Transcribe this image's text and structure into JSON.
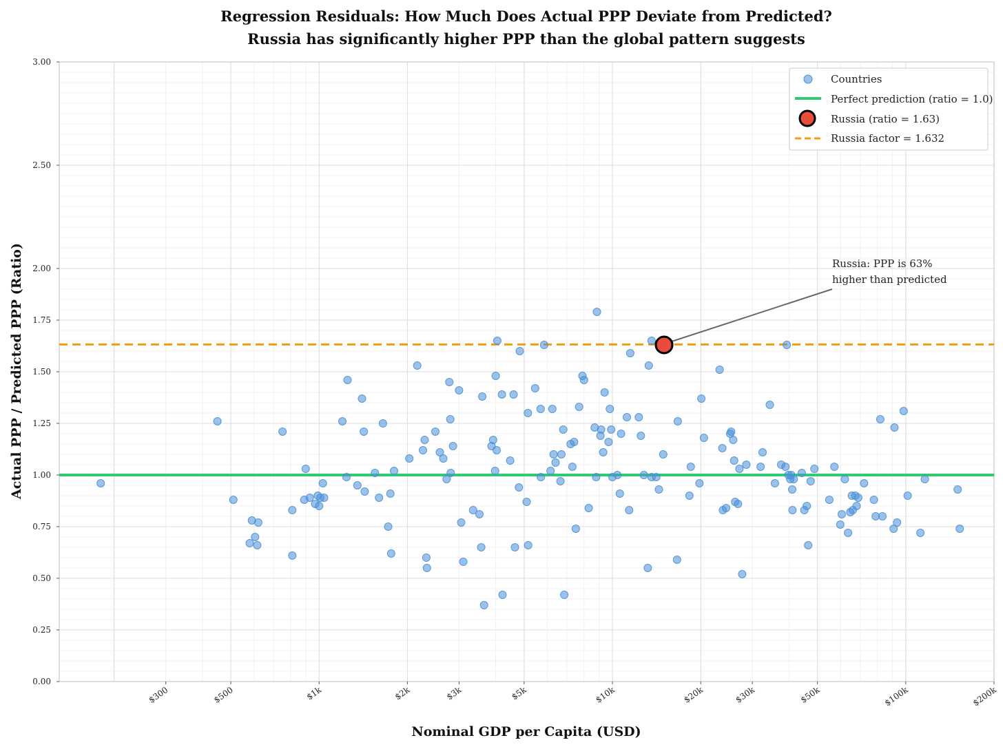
{
  "chart_data": {
    "type": "scatter",
    "title": "Regression Residuals: How Much Does Actual PPP Deviate from Predicted?",
    "subtitle": "Russia has significantly higher PPP than the global pattern suggests",
    "xlabel": "Nominal GDP per Capita (USD)",
    "ylabel": "Actual PPP / Predicted PPP (Ratio)",
    "x_scale": "log",
    "xlim": [
      130,
      200000
    ],
    "ylim": [
      0,
      3
    ],
    "x_ticks": [
      {
        "value": 300,
        "label": "$300"
      },
      {
        "value": 500,
        "label": "$500"
      },
      {
        "value": 1000,
        "label": "$1k"
      },
      {
        "value": 2000,
        "label": "$2k"
      },
      {
        "value": 3000,
        "label": "$3k"
      },
      {
        "value": 5000,
        "label": "$5k"
      },
      {
        "value": 10000,
        "label": "$10k"
      },
      {
        "value": 20000,
        "label": "$20k"
      },
      {
        "value": 30000,
        "label": "$30k"
      },
      {
        "value": 50000,
        "label": "$50k"
      },
      {
        "value": 100000,
        "label": "$100k"
      },
      {
        "value": 200000,
        "label": "$200k"
      }
    ],
    "y_ticks": [
      {
        "value": 0.0,
        "label": "0.00"
      },
      {
        "value": 0.25,
        "label": "0.25"
      },
      {
        "value": 0.5,
        "label": "0.50"
      },
      {
        "value": 0.75,
        "label": "0.75"
      },
      {
        "value": 1.0,
        "label": "1.00"
      },
      {
        "value": 1.25,
        "label": "1.25"
      },
      {
        "value": 1.5,
        "label": "1.50"
      },
      {
        "value": 1.75,
        "label": "1.75"
      },
      {
        "value": 2.0,
        "label": "2.00"
      },
      {
        "value": 2.5,
        "label": "2.50"
      },
      {
        "value": 3.0,
        "label": "3.00"
      }
    ],
    "grid": true,
    "legend": {
      "position": "top-right",
      "entries": [
        {
          "key": "countries",
          "label": "Countries"
        },
        {
          "key": "perfect",
          "label": "Perfect prediction (ratio = 1.0)"
        },
        {
          "key": "russia",
          "label": "Russia (ratio = 1.63)"
        },
        {
          "key": "factor",
          "label": "Russia factor = 1.632"
        }
      ]
    },
    "reference_lines": [
      {
        "name": "Perfect prediction",
        "y": 1.0,
        "color": "#2ecc71",
        "style": "solid"
      },
      {
        "name": "Russia factor",
        "y": 1.632,
        "color": "#f39c12",
        "style": "dashed"
      }
    ],
    "highlight": {
      "name": "Russia",
      "x": 15000,
      "y": 1.63,
      "color": "#e74c3c"
    },
    "annotation": {
      "line1": "Russia: PPP is 63%",
      "line2": "higher than predicted"
    },
    "series": [
      {
        "name": "Countries",
        "color": "#4a90d9",
        "points": [
          [
            180,
            0.96
          ],
          [
            450,
            1.26
          ],
          [
            510,
            0.88
          ],
          [
            590,
            0.78
          ],
          [
            620,
            0.77
          ],
          [
            580,
            0.67
          ],
          [
            605,
            0.7
          ],
          [
            615,
            0.66
          ],
          [
            750,
            1.21
          ],
          [
            810,
            0.83
          ],
          [
            810,
            0.61
          ],
          [
            900,
            1.03
          ],
          [
            890,
            0.88
          ],
          [
            930,
            0.89
          ],
          [
            970,
            0.86
          ],
          [
            990,
            0.9
          ],
          [
            1000,
            0.85
          ],
          [
            1010,
            0.89
          ],
          [
            1040,
            0.89
          ],
          [
            1030,
            0.96
          ],
          [
            1200,
            1.26
          ],
          [
            1250,
            1.46
          ],
          [
            1240,
            0.99
          ],
          [
            1350,
            0.95
          ],
          [
            1400,
            1.37
          ],
          [
            1420,
            1.21
          ],
          [
            1430,
            0.92
          ],
          [
            1550,
            1.01
          ],
          [
            1600,
            0.89
          ],
          [
            1650,
            1.25
          ],
          [
            1720,
            0.75
          ],
          [
            1750,
            0.91
          ],
          [
            1760,
            0.62
          ],
          [
            1800,
            1.02
          ],
          [
            2030,
            1.08
          ],
          [
            2160,
            1.53
          ],
          [
            2260,
            1.12
          ],
          [
            2290,
            1.17
          ],
          [
            2320,
            0.6
          ],
          [
            2330,
            0.55
          ],
          [
            2490,
            1.21
          ],
          [
            2580,
            1.11
          ],
          [
            2650,
            1.08
          ],
          [
            2720,
            0.98
          ],
          [
            2780,
            1.45
          ],
          [
            2800,
            1.27
          ],
          [
            2810,
            1.01
          ],
          [
            2860,
            1.14
          ],
          [
            3000,
            1.41
          ],
          [
            3050,
            0.77
          ],
          [
            3100,
            0.58
          ],
          [
            3350,
            0.83
          ],
          [
            3520,
            0.81
          ],
          [
            3570,
            0.65
          ],
          [
            3600,
            1.38
          ],
          [
            3650,
            0.37
          ],
          [
            3870,
            1.14
          ],
          [
            3920,
            1.17
          ],
          [
            3980,
            1.02
          ],
          [
            4000,
            1.48
          ],
          [
            4030,
            1.12
          ],
          [
            4050,
            1.65
          ],
          [
            4200,
            1.39
          ],
          [
            4220,
            0.42
          ],
          [
            4480,
            1.07
          ],
          [
            4600,
            1.39
          ],
          [
            4650,
            0.65
          ],
          [
            4800,
            0.94
          ],
          [
            4830,
            1.6
          ],
          [
            5100,
            0.87
          ],
          [
            5150,
            1.3
          ],
          [
            5160,
            0.66
          ],
          [
            5450,
            1.42
          ],
          [
            5700,
            0.99
          ],
          [
            5690,
            1.32
          ],
          [
            5850,
            1.63
          ],
          [
            6150,
            1.02
          ],
          [
            6240,
            1.32
          ],
          [
            6300,
            1.1
          ],
          [
            6400,
            1.06
          ],
          [
            6650,
            0.97
          ],
          [
            6700,
            1.1
          ],
          [
            6800,
            1.22
          ],
          [
            6850,
            0.42
          ],
          [
            7200,
            1.15
          ],
          [
            7300,
            1.04
          ],
          [
            7400,
            1.16
          ],
          [
            7500,
            0.74
          ],
          [
            7700,
            1.33
          ],
          [
            7900,
            1.48
          ],
          [
            8000,
            1.46
          ],
          [
            8300,
            0.84
          ],
          [
            8700,
            1.23
          ],
          [
            8800,
            0.99
          ],
          [
            8850,
            1.79
          ],
          [
            9100,
            1.19
          ],
          [
            9150,
            1.22
          ],
          [
            9300,
            1.11
          ],
          [
            9400,
            1.4
          ],
          [
            9700,
            1.16
          ],
          [
            9800,
            1.32
          ],
          [
            9900,
            1.22
          ],
          [
            10000,
            0.99
          ],
          [
            10400,
            1.0
          ],
          [
            10600,
            0.91
          ],
          [
            10700,
            1.2
          ],
          [
            11200,
            1.28
          ],
          [
            11400,
            0.83
          ],
          [
            11500,
            1.59
          ],
          [
            12300,
            1.28
          ],
          [
            12500,
            1.19
          ],
          [
            12800,
            1.0
          ],
          [
            13200,
            0.55
          ],
          [
            13300,
            1.53
          ],
          [
            13600,
            0.99
          ],
          [
            13600,
            1.65
          ],
          [
            14100,
            0.99
          ],
          [
            14400,
            0.93
          ],
          [
            14900,
            1.1
          ],
          [
            16700,
            1.26
          ],
          [
            16600,
            0.59
          ],
          [
            18300,
            0.9
          ],
          [
            18500,
            1.04
          ],
          [
            19800,
            0.96
          ],
          [
            20100,
            1.37
          ],
          [
            20500,
            1.18
          ],
          [
            23200,
            1.51
          ],
          [
            23700,
            1.13
          ],
          [
            23800,
            0.83
          ],
          [
            24400,
            0.84
          ],
          [
            25200,
            1.2
          ],
          [
            25400,
            1.21
          ],
          [
            25800,
            1.17
          ],
          [
            26000,
            1.07
          ],
          [
            26200,
            0.87
          ],
          [
            26800,
            0.86
          ],
          [
            27100,
            1.03
          ],
          [
            27700,
            0.52
          ],
          [
            28600,
            1.05
          ],
          [
            32000,
            1.04
          ],
          [
            32500,
            1.11
          ],
          [
            34400,
            1.34
          ],
          [
            35800,
            0.96
          ],
          [
            37600,
            1.05
          ],
          [
            38900,
            1.04
          ],
          [
            39300,
            1.63
          ],
          [
            39800,
            1.0
          ],
          [
            40400,
            0.98
          ],
          [
            40700,
            1.0
          ],
          [
            41000,
            0.93
          ],
          [
            41100,
            0.83
          ],
          [
            41500,
            0.98
          ],
          [
            44200,
            1.01
          ],
          [
            45100,
            0.83
          ],
          [
            46000,
            0.85
          ],
          [
            46500,
            0.66
          ],
          [
            47400,
            0.97
          ],
          [
            48800,
            1.03
          ],
          [
            54900,
            0.88
          ],
          [
            57100,
            1.04
          ],
          [
            59800,
            0.76
          ],
          [
            60500,
            0.81
          ],
          [
            62000,
            0.98
          ],
          [
            63600,
            0.72
          ],
          [
            64700,
            0.82
          ],
          [
            65500,
            0.9
          ],
          [
            66000,
            0.83
          ],
          [
            67300,
            0.9
          ],
          [
            68000,
            0.85
          ],
          [
            68900,
            0.89
          ],
          [
            72100,
            0.96
          ],
          [
            77900,
            0.88
          ],
          [
            79000,
            0.8
          ],
          [
            81900,
            1.27
          ],
          [
            83300,
            0.8
          ],
          [
            90900,
            0.74
          ],
          [
            91500,
            1.23
          ],
          [
            93400,
            0.77
          ],
          [
            98400,
            1.31
          ],
          [
            101500,
            0.9
          ],
          [
            112200,
            0.72
          ],
          [
            116200,
            0.98
          ],
          [
            150300,
            0.93
          ],
          [
            152800,
            0.74
          ]
        ]
      }
    ]
  }
}
